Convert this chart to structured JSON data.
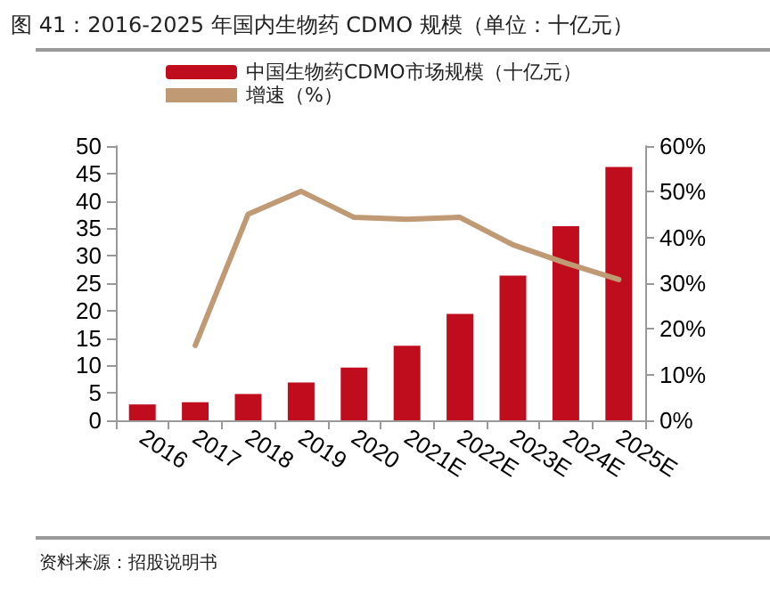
{
  "chart_data": {
    "type": "bar",
    "title": "图 41：2016-2025 年国内生物药 CDMO 规模（单位：十亿元）",
    "categories": [
      "2016",
      "2017",
      "2018",
      "2019",
      "2020",
      "2021E",
      "2022E",
      "2023E",
      "2024E",
      "2025E"
    ],
    "series": [
      {
        "name": "中国生物药CDMO市场规模（十亿元）",
        "color": "#c00d1e",
        "values": [
          2.9,
          3.3,
          4.8,
          6.9,
          9.6,
          13.6,
          19.4,
          26.4,
          35.4,
          46.2
        ]
      },
      {
        "name": "增速（%）",
        "type": "line",
        "axis": "y2",
        "color": "#c09a75",
        "values": [
          null,
          16.4,
          45.1,
          50.1,
          44.4,
          44.0,
          44.4,
          38.4,
          34.4,
          30.8
        ]
      }
    ],
    "ylim": [
      0,
      50
    ],
    "yticks": [
      0,
      5,
      10,
      15,
      20,
      25,
      30,
      35,
      40,
      45,
      50
    ],
    "y2lim": [
      0,
      60
    ],
    "y2ticks": [
      {
        "value": 0,
        "label": "0%"
      },
      {
        "value": 10,
        "label": "10%"
      },
      {
        "value": 20,
        "label": "20%"
      },
      {
        "value": 30,
        "label": "30%"
      },
      {
        "value": 40,
        "label": "40%"
      },
      {
        "value": 50,
        "label": "50%"
      },
      {
        "value": 60,
        "label": "60%"
      }
    ],
    "grid": false,
    "legend": "top left",
    "marker": "none",
    "annotations": [
      "资料来源：招股说明书"
    ]
  }
}
